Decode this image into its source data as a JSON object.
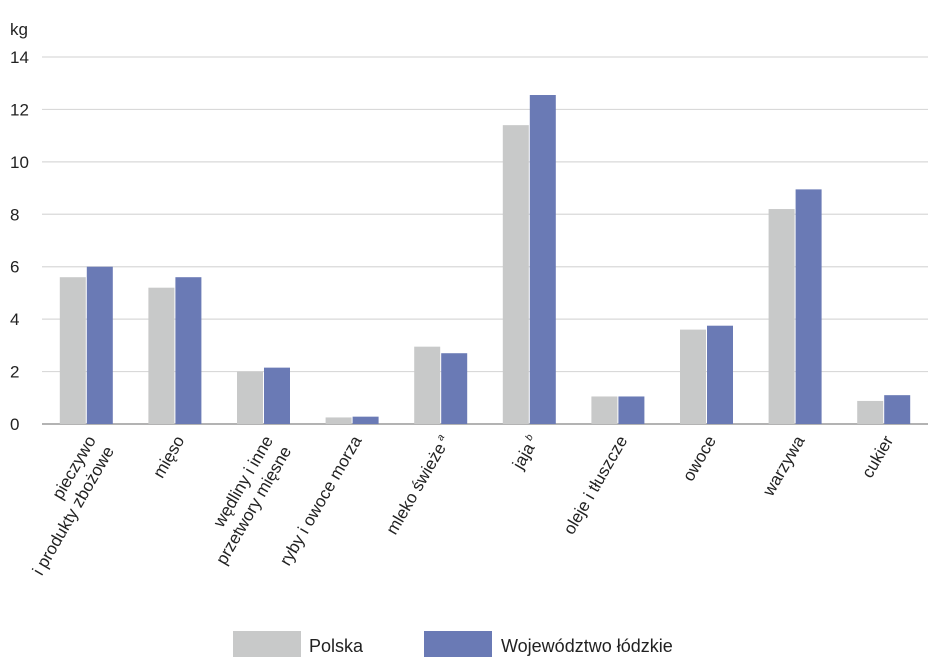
{
  "chart_data": {
    "type": "bar",
    "unit_label": "kg",
    "ylim": [
      0,
      14
    ],
    "yticks": [
      0,
      2,
      4,
      6,
      8,
      10,
      12,
      14
    ],
    "grid": true,
    "legend_position": "bottom-center",
    "categories": [
      [
        "pieczywo",
        "i produkty zbożowe"
      ],
      [
        "mięso"
      ],
      [
        "wędliny i inne",
        "przetwory mięsne"
      ],
      [
        "ryby i owoce morza"
      ],
      [
        "mleko świeże",
        "a"
      ],
      [
        "jaja",
        "b"
      ],
      [
        "oleje i tłuszcze"
      ],
      [
        "owoce"
      ],
      [
        "warzywa"
      ],
      [
        "cukier"
      ]
    ],
    "series": [
      {
        "name": "Polska",
        "color": "#c8c9c9",
        "values": [
          5.6,
          5.2,
          2.0,
          0.25,
          2.95,
          11.4,
          1.05,
          3.6,
          8.2,
          0.88
        ]
      },
      {
        "name": "Województwo łódzkie",
        "color": "#6a7ab5",
        "values": [
          6.0,
          5.6,
          2.15,
          0.28,
          2.7,
          12.55,
          1.05,
          3.75,
          8.95,
          1.1
        ]
      }
    ]
  }
}
